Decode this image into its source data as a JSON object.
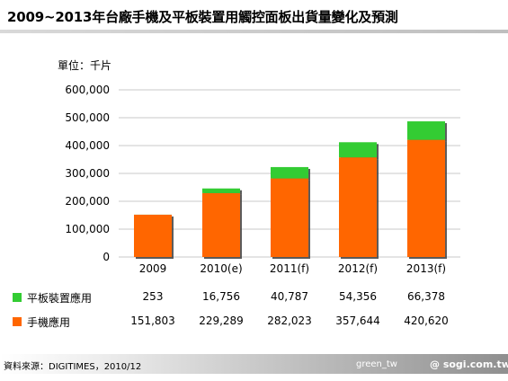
{
  "title": "2009~2013年台廠手機及平板裝置用觸控面板出貨量變化及預測",
  "unit_label": "單位：千片",
  "chart_data": {
    "type": "bar",
    "stacked": true,
    "categories": [
      "2009",
      "2010(e)",
      "2011(f)",
      "2012(f)",
      "2013(f)"
    ],
    "series": [
      {
        "name": "手機應用",
        "color": "#ff6600",
        "values": [
          151803,
          229289,
          282023,
          357644,
          420620
        ],
        "value_labels": [
          "151,803",
          "229,289",
          "282,023",
          "357,644",
          "420,620"
        ]
      },
      {
        "name": "平板裝置應用",
        "color": "#33cc33",
        "values": [
          253,
          16756,
          40787,
          54356,
          66378
        ],
        "value_labels": [
          "253",
          "16,756",
          "40,787",
          "54,356",
          "66,378"
        ]
      }
    ],
    "yticks": [
      "600,000",
      "500,000",
      "400,000",
      "300,000",
      "200,000",
      "100,000",
      "0"
    ],
    "ylim": [
      0,
      600000
    ],
    "grid": true
  },
  "footer": {
    "source": "資料來源：DIGITIMES，2010/12",
    "credit": "green_tw",
    "website": "@ sogi.com.tw"
  }
}
